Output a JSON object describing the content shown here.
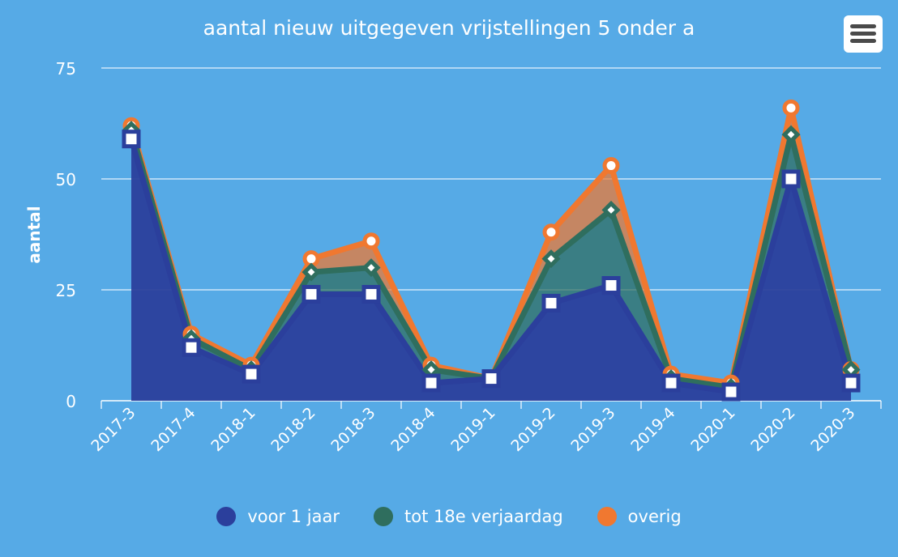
{
  "menu": {
    "icon": "hamburger-menu-icon"
  },
  "chart_data": {
    "type": "area",
    "stacked": true,
    "title": "aantal nieuw uitgegeven vrijstellingen 5 onder a",
    "xlabel": "",
    "ylabel": "aantal",
    "ylim": [
      0,
      75
    ],
    "yticks": [
      0,
      25,
      50,
      75
    ],
    "grid": true,
    "legend_position": "bottom",
    "categories": [
      "2017-3",
      "2017-4",
      "2018-1",
      "2018-2",
      "2018-3",
      "2018-4",
      "2019-1",
      "2019-2",
      "2019-3",
      "2019-4",
      "2020-1",
      "2020-2",
      "2020-3"
    ],
    "series": [
      {
        "name": "voor 1 jaar",
        "color": "#2b3f9c",
        "marker": "square",
        "values": [
          59,
          12,
          6,
          24,
          24,
          4,
          5,
          22,
          26,
          4,
          2,
          50,
          4
        ]
      },
      {
        "name": "tot 18e verjaardag",
        "color": "#2f6e5e",
        "marker": "diamond",
        "values": [
          2,
          2,
          1,
          5,
          6,
          3,
          0,
          10,
          17,
          1,
          1,
          10,
          3
        ]
      },
      {
        "name": "overig",
        "color": "#f07830",
        "marker": "circle",
        "values": [
          1,
          1,
          1,
          3,
          6,
          1,
          0,
          6,
          10,
          1,
          1,
          6,
          0
        ]
      }
    ]
  }
}
